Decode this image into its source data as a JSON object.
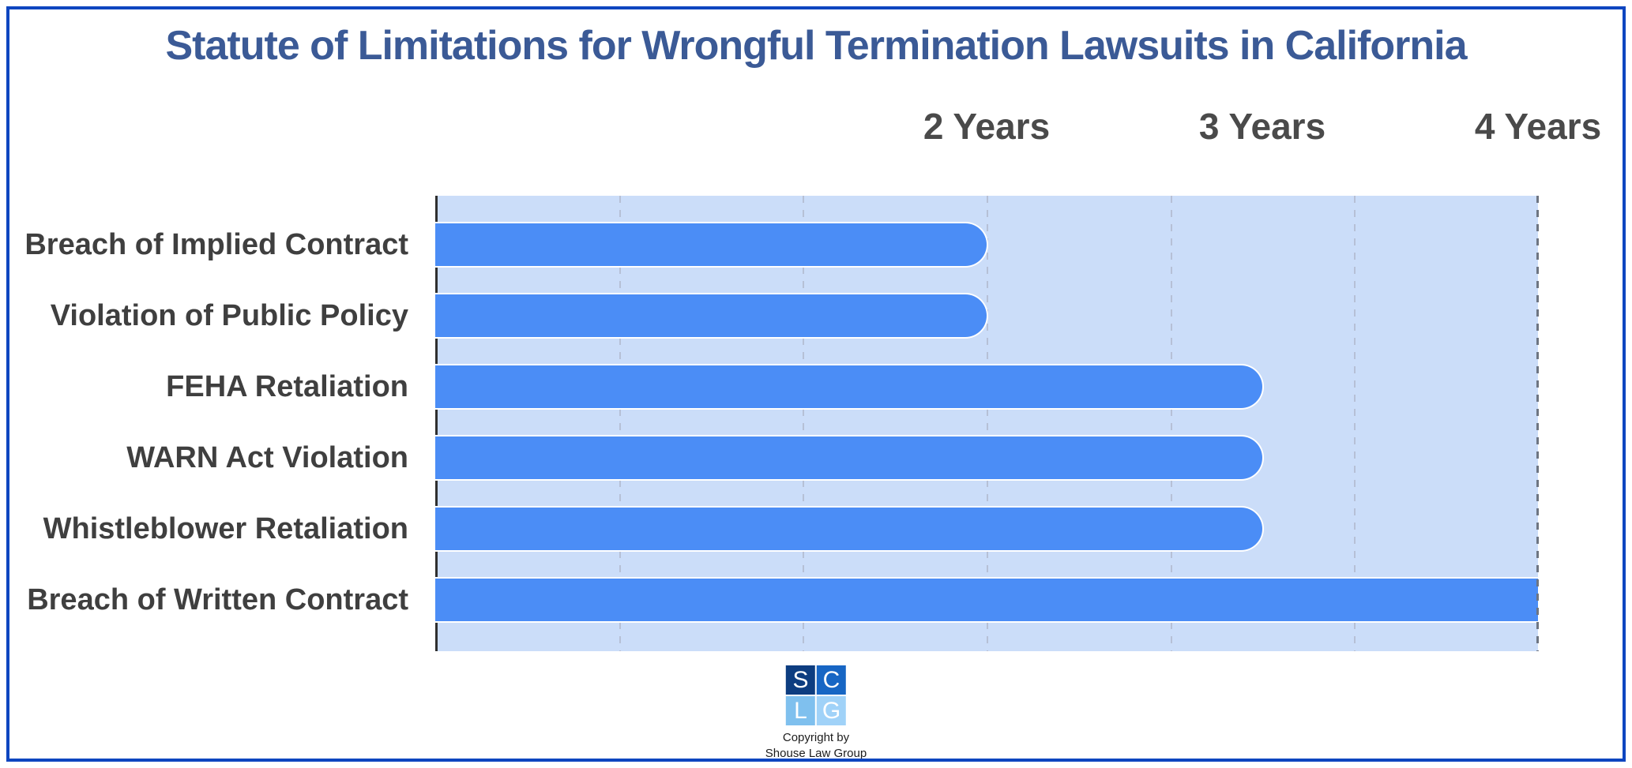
{
  "title": "Statute of Limitations for Wrongful Termination Lawsuits in California",
  "chart_data": {
    "type": "bar",
    "orientation": "horizontal",
    "title": "Statute of Limitations for Wrongful Termination Lawsuits in California",
    "categories": [
      "Breach of Implied Contract",
      "Violation of Public Policy",
      "FEHA Retaliation",
      "WARN Act Violation",
      "Whistleblower Retaliation",
      "Breach of Written Contract"
    ],
    "values": [
      2,
      2,
      3,
      3,
      3,
      4
    ],
    "value_unit": "years",
    "xlim": [
      0,
      4
    ],
    "x_axis_labels": [
      {
        "label": "2 Years",
        "value": 2
      },
      {
        "label": "3 Years",
        "value": 3
      },
      {
        "label": "4 Years",
        "value": 4
      }
    ],
    "gridlines": "vertical dashed, every two-thirds year",
    "legend": "none",
    "bar_color": "#4b8df6",
    "plot_background": "#cbddf9"
  },
  "colors": {
    "frame_border": "#0e46c0",
    "title_text": "#3b5a96",
    "axis_label_text": "#4a4a4a",
    "category_label_text": "#3f3f3f",
    "axis_line": "#2f2f2f",
    "gridline": "#b6c0d6"
  },
  "footer": {
    "logo": {
      "letters": [
        "S",
        "C",
        "L",
        "G"
      ],
      "colors": [
        "#0d3d80",
        "#1766c4",
        "#7fc0ee",
        "#a0d2f8"
      ]
    },
    "copyright_line1": "Copyright by",
    "copyright_line2": "Shouse Law Group"
  }
}
